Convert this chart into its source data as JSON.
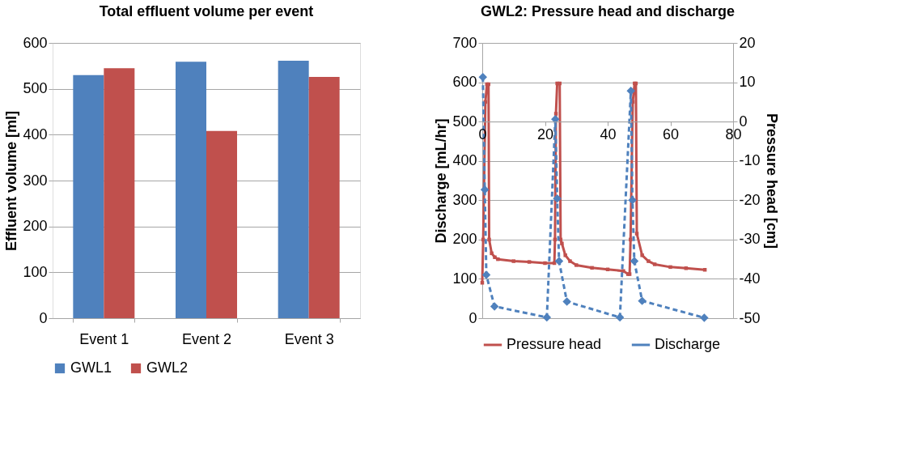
{
  "chart_data": [
    {
      "type": "bar",
      "title": "Total effluent volume per event",
      "ylabel": "Effluent volume [ml]",
      "categories": [
        "Event 1",
        "Event 2",
        "Event 3"
      ],
      "series": [
        {
          "name": "GWL1",
          "color": "#4f81bd",
          "values": [
            530,
            559,
            561
          ]
        },
        {
          "name": "GWL2",
          "color": "#c0504d",
          "values": [
            545,
            408,
            526
          ]
        }
      ],
      "ylim": [
        0,
        600
      ],
      "yticks": [
        0,
        100,
        200,
        300,
        400,
        500,
        600
      ],
      "grid": "y",
      "legend": "bottom"
    },
    {
      "type": "line",
      "title": "GWL2: Pressure head and discharge",
      "ylabel": "Discharge [mL/hr]",
      "y2label": "Pressure head [cm]",
      "xlim": [
        0,
        80
      ],
      "xticks": [
        0,
        20,
        40,
        60,
        80
      ],
      "ylim": [
        0,
        700
      ],
      "yticks": [
        0,
        100,
        200,
        300,
        400,
        500,
        600,
        700
      ],
      "y2lim": [
        -50,
        20
      ],
      "y2ticks": [
        -50,
        -40,
        -30,
        -20,
        -10,
        0,
        10,
        20
      ],
      "grid": "y",
      "legend": "bottom",
      "series": [
        {
          "name": "Pressure head",
          "color": "#c0504d",
          "axis": "y2",
          "marker": "square",
          "line_style": "solid",
          "x": [
            0,
            0.3,
            1.0,
            1.5,
            2.0,
            2.2,
            3,
            4,
            5,
            10,
            15,
            20,
            23,
            23.2,
            23.5,
            23.9,
            24.7,
            25.0,
            25.4,
            26.5,
            28,
            30,
            35,
            40,
            45,
            46.5,
            47,
            47.3,
            48,
            48.6,
            49,
            49.3,
            51,
            53,
            55,
            60,
            65,
            71
          ],
          "values": [
            -41,
            -30,
            5,
            9.5,
            9.5,
            -30,
            -33.5,
            -34.5,
            -35,
            -35.5,
            -35.7,
            -36,
            -36,
            -30,
            2,
            9.7,
            9.7,
            -30,
            -31,
            -34,
            -35.5,
            -36.5,
            -37.2,
            -37.6,
            -38,
            -38.8,
            -38.8,
            -30,
            5,
            9.7,
            9.7,
            -28.5,
            -34,
            -35.5,
            -36.3,
            -37,
            -37.3,
            -37.7
          ]
        },
        {
          "name": "Discharge",
          "color": "#4f81bd",
          "marker": "diamond",
          "line_style": "dashed",
          "x": [
            0.2,
            0.8,
            1.3,
            3.9,
            20.6,
            23.3,
            23.9,
            24.5,
            27,
            43.9,
            47.4,
            47.9,
            48.5,
            51,
            70.8
          ],
          "values": [
            613,
            327,
            110,
            30,
            2,
            506,
            304,
            145,
            42,
            2,
            578,
            300,
            145,
            44,
            1
          ]
        }
      ]
    }
  ]
}
